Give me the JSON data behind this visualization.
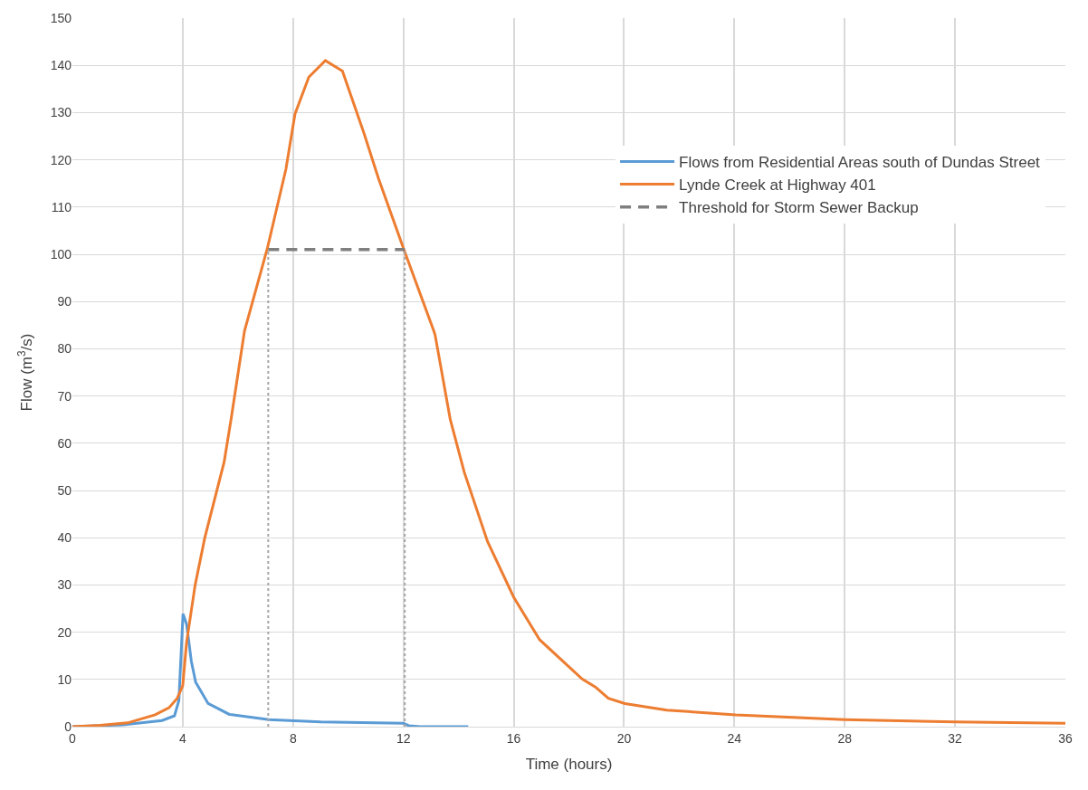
{
  "chart_data": {
    "type": "line",
    "xlabel": "Time (hours)",
    "ylabel": "Flow (m$^{3}$/s)",
    "xlim": [
      0,
      36
    ],
    "xticks": [
      0,
      4,
      8,
      12,
      16,
      20,
      24,
      28,
      32,
      36
    ],
    "ylim": [
      0,
      150
    ],
    "yticks": [
      0,
      10,
      20,
      30,
      40,
      50,
      60,
      70,
      80,
      90,
      100,
      110,
      120,
      130,
      140,
      150
    ],
    "grid": true,
    "legend": "right",
    "marker": "none",
    "series": [
      {
        "name": "Flows from Residential Areas south of Dundas Street",
        "color": "#5b9bd5",
        "line_style": "solid",
        "x": [
          0,
          1.82,
          3.25,
          3.7,
          3.86,
          4.01,
          4.14,
          4.31,
          4.47,
          4.92,
          5.69,
          7.13,
          9.0,
          12.0,
          12.2,
          12.6,
          14.35
        ],
        "values": [
          0,
          0.4,
          1.3,
          2.3,
          5.5,
          23.9,
          21.7,
          13.9,
          9.4,
          4.9,
          2.6,
          1.5,
          1.0,
          0.7,
          0.2,
          0,
          0
        ]
      },
      {
        "name": "Lynde Creek at Highway 401",
        "color": "#ed7d31",
        "line_style": "solid",
        "x": [
          0,
          1,
          2,
          3,
          3.5,
          3.8,
          4.0,
          4.14,
          4.45,
          4.8,
          5.5,
          5.75,
          6.24,
          7.07,
          7.74,
          8.07,
          8.57,
          9.17,
          9.79,
          10.56,
          11.1,
          12.0,
          13.1,
          13.15,
          13.7,
          14.21,
          15.05,
          16.0,
          16.94,
          18.48,
          18.96,
          19.43,
          20.03,
          21.55,
          24.05,
          28,
          32,
          36
        ],
        "values": [
          0,
          0.3,
          0.8,
          2.5,
          4,
          6,
          8.7,
          17.9,
          30,
          40,
          56,
          65,
          83.8,
          101.3,
          118,
          129.7,
          137.5,
          141,
          138.8,
          125.8,
          116,
          101.3,
          83.8,
          82.9,
          65,
          53.8,
          39.2,
          27.4,
          18.4,
          10.1,
          8.4,
          6.0,
          4.9,
          3.5,
          2.5,
          1.5,
          1.0,
          0.7
        ]
      },
      {
        "name": "Threshold for Storm Sewer Backup",
        "color": "#7f7f7f",
        "line_style": "dashed",
        "x": [
          7.1,
          12.05
        ],
        "values": [
          101,
          101
        ]
      },
      {
        "color": "#a5a5a5",
        "line_style": "dotted",
        "x": [
          7.1,
          7.1
        ],
        "values": [
          0,
          101
        ]
      },
      {
        "color": "#a5a5a5",
        "line_style": "dotted",
        "x": [
          12.05,
          12.05
        ],
        "values": [
          0,
          101
        ]
      }
    ]
  }
}
